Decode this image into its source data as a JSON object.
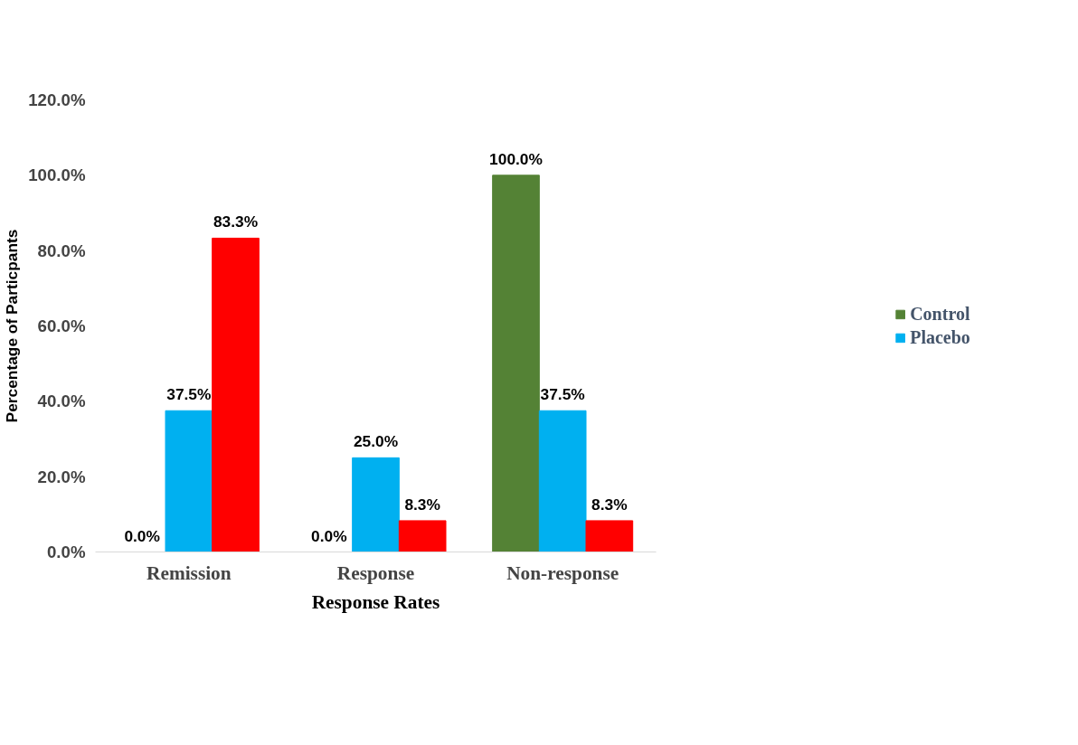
{
  "chart_data": {
    "type": "bar",
    "xlabel": "Response Rates",
    "ylabel": "Percentage of Particpants",
    "categories": [
      "Remission",
      "Response",
      "Non-response"
    ],
    "series": [
      {
        "name": "Control",
        "color": "#548235",
        "values": [
          0,
          0,
          100
        ],
        "value_labels": [
          "0.0%",
          "0.0%",
          "100.0%"
        ]
      },
      {
        "name": "Placebo",
        "color": "#00b0f0",
        "values": [
          37.5,
          25,
          37.5
        ],
        "value_labels": [
          "37.5%",
          "25.0%",
          "37.5%"
        ]
      },
      {
        "color": "#ff0000",
        "values": [
          83.3,
          8.3,
          8.3
        ],
        "value_labels": [
          "83.3%",
          "8.3%",
          "8.3%"
        ]
      }
    ],
    "ylim": [
      0,
      120
    ],
    "yticks": [
      {
        "value": 0,
        "label": "0.0%"
      },
      {
        "value": 20,
        "label": "20.0%"
      },
      {
        "value": 40,
        "label": "40.0%"
      },
      {
        "value": 60,
        "label": "60.0%"
      },
      {
        "value": 80,
        "label": "80.0%"
      },
      {
        "value": 100,
        "label": "100.0%"
      },
      {
        "value": 120,
        "label": "120.0%"
      }
    ],
    "grid": false,
    "legend": "right"
  }
}
